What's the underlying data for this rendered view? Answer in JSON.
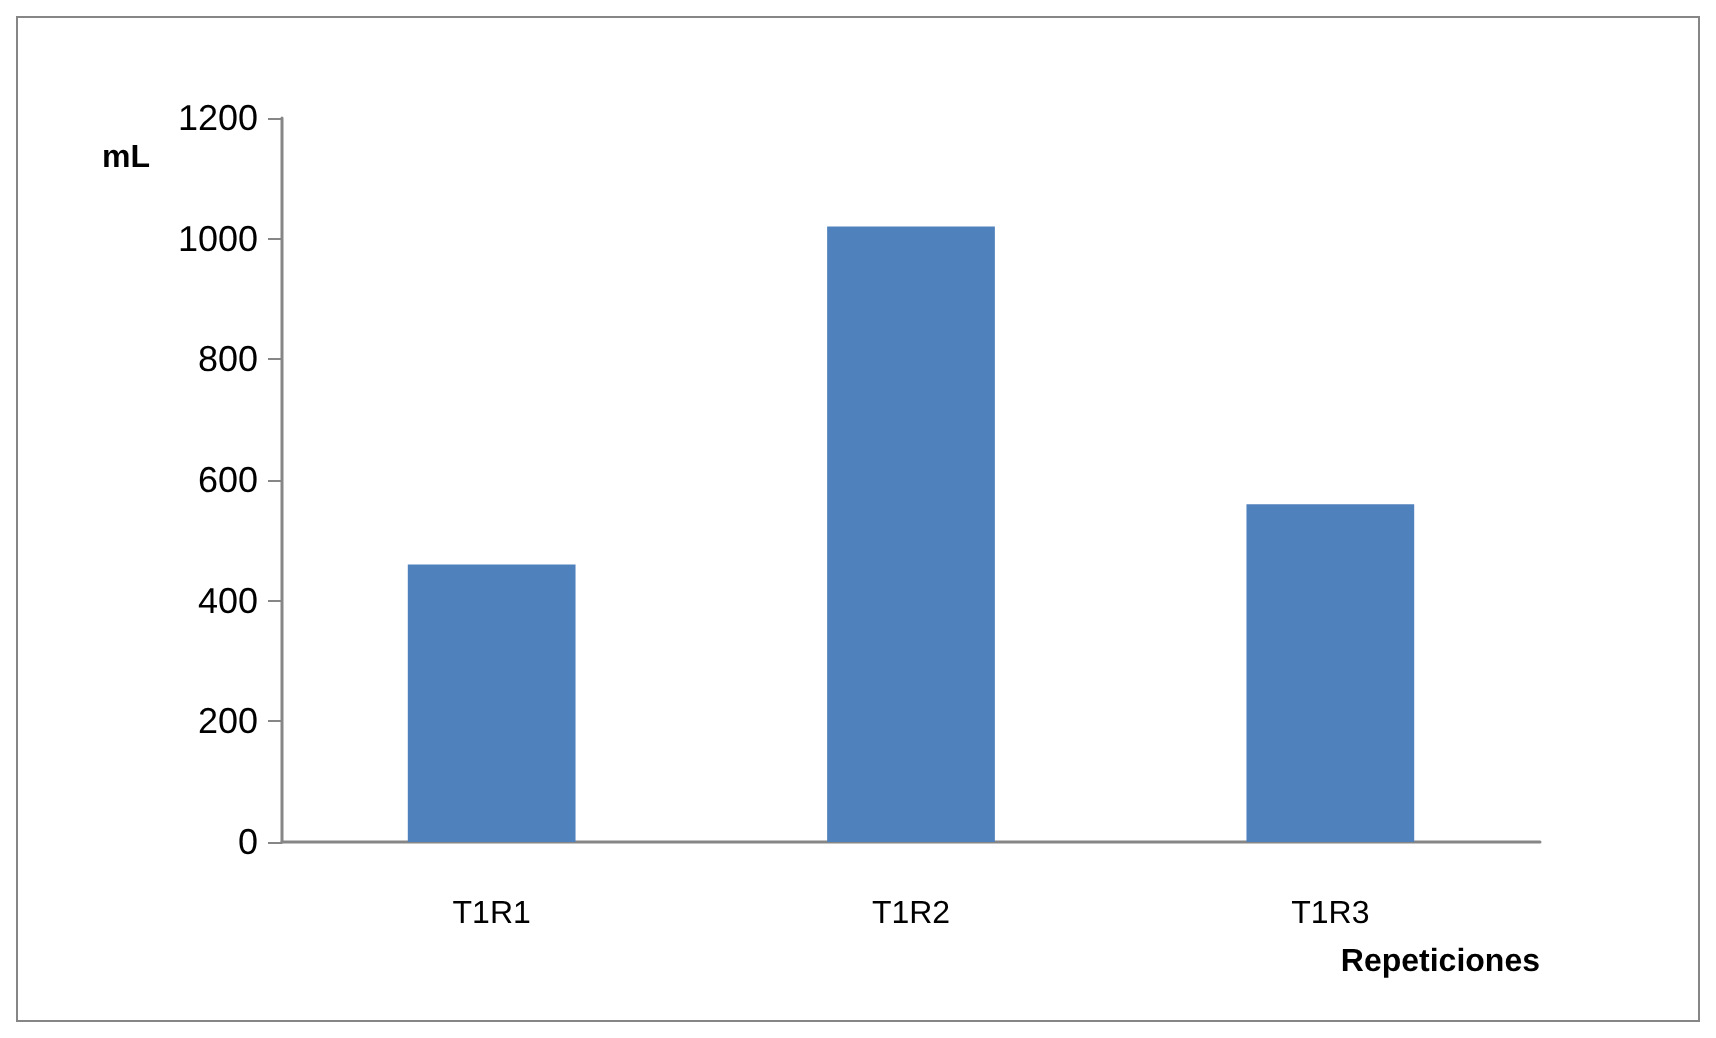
{
  "chart_data": {
    "type": "bar",
    "xlabel": "Repeticiones",
    "ylabel": "mL",
    "categories": [
      "T1R1",
      "T1R2",
      "T1R3"
    ],
    "values": [
      460,
      1020,
      560
    ],
    "color": "#4f81bd",
    "ylim": [
      0,
      1200
    ],
    "yticks": [
      0,
      200,
      400,
      600,
      800,
      1000,
      1200
    ],
    "grid": false
  }
}
